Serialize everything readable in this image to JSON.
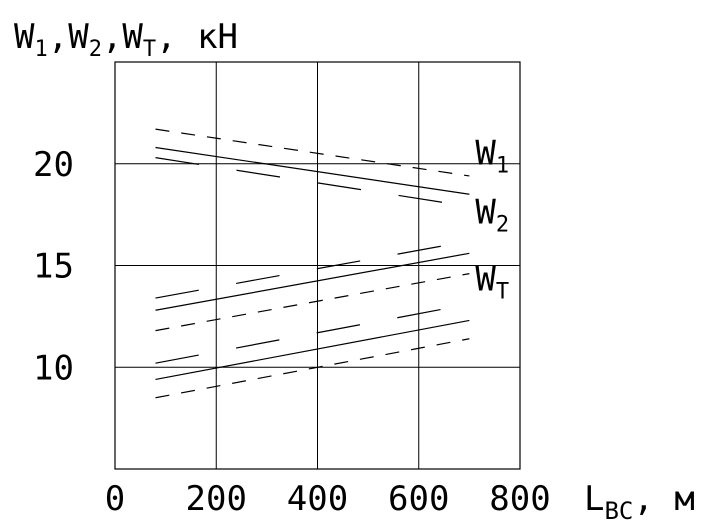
{
  "chart_data": {
    "type": "line",
    "x": [
      80,
      700
    ],
    "xlim": [
      0,
      800
    ],
    "ylim": [
      5,
      25
    ],
    "x_ticks": [
      "0",
      "200",
      "400",
      "600",
      "800"
    ],
    "y_ticks": [
      "10",
      "15",
      "20"
    ],
    "grid": true,
    "ylabel": {
      "main": "W",
      "s1": "1",
      "mid1": ",W",
      "s2": "2",
      "mid2": ",W",
      "s3": "T",
      "tail": ", кН"
    },
    "xlabel": {
      "main": "L",
      "sub": "ВС",
      "tail": ", м"
    },
    "series": [
      {
        "id": "W1",
        "label_main": "W",
        "label_sub": "1",
        "style": "solid",
        "values": [
          20.8,
          18.5
        ]
      },
      {
        "id": "W1-upper",
        "style": "dashed",
        "values": [
          21.7,
          19.4
        ]
      },
      {
        "id": "W1-lower",
        "style": "long-dashed",
        "values": [
          20.3,
          17.9
        ]
      },
      {
        "id": "W2",
        "label_main": "W",
        "label_sub": "2",
        "style": "solid",
        "values": [
          12.8,
          15.6
        ]
      },
      {
        "id": "W2-upper",
        "style": "long-dashed",
        "values": [
          13.4,
          16.2
        ]
      },
      {
        "id": "W2-lower",
        "style": "dashed",
        "values": [
          11.8,
          14.6
        ]
      },
      {
        "id": "WT",
        "label_main": "W",
        "label_sub": "T",
        "style": "solid",
        "values": [
          9.4,
          12.3
        ]
      },
      {
        "id": "WT-upper",
        "style": "long-dashed",
        "values": [
          10.2,
          13.1
        ]
      },
      {
        "id": "WT-lower",
        "style": "dashed",
        "values": [
          8.5,
          11.4
        ]
      }
    ]
  }
}
